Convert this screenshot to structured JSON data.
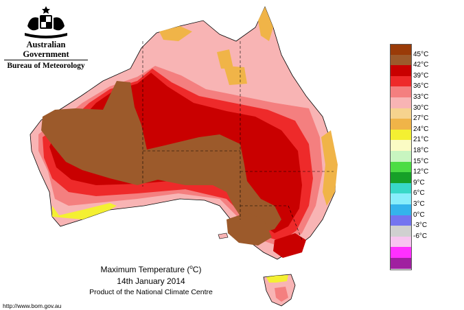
{
  "agency": {
    "line1": "Australian Government",
    "line2": "Bureau of Meteorology"
  },
  "map": {
    "title_prefix": "Maximum Temperature (",
    "title_unit_sup": "o",
    "title_suffix": "C)",
    "date": "14th January 2014",
    "product": "Product of the National Climate Centre",
    "website": "http://www.bom.gov.au"
  },
  "legend": {
    "entries": [
      {
        "label": "45°C",
        "color": "#9a3b08"
      },
      {
        "label": "42°C",
        "color": "#9c5a2b"
      },
      {
        "label": "39°C",
        "color": "#c90000"
      },
      {
        "label": "36°C",
        "color": "#ee2a2a"
      },
      {
        "label": "33°C",
        "color": "#f47f7f"
      },
      {
        "label": "30°C",
        "color": "#f8b4b4"
      },
      {
        "label": "27°C",
        "color": "#f6d38e"
      },
      {
        "label": "24°C",
        "color": "#f0b448"
      },
      {
        "label": "21°C",
        "color": "#f4f032"
      },
      {
        "label": "18°C",
        "color": "#fbfbc4"
      },
      {
        "label": "15°C",
        "color": "#c8f5c0"
      },
      {
        "label": "12°C",
        "color": "#4cdc44"
      },
      {
        "label": "9°C",
        "color": "#16a028"
      },
      {
        "label": "6°C",
        "color": "#38d8c8"
      },
      {
        "label": "3°C",
        "color": "#88eefb"
      },
      {
        "label": "0°C",
        "color": "#34b4ec"
      },
      {
        "label": "-3°C",
        "color": "#7474f0"
      },
      {
        "label": "-6°C",
        "color": "#d0d0d0"
      },
      {
        "label": "",
        "color": "#f8c4f0"
      },
      {
        "label": "",
        "color": "#ff30ff"
      },
      {
        "label": "",
        "color": "#a020a0"
      }
    ]
  },
  "colors": {
    "brown": "#9c5a2b",
    "dark_red": "#c90000",
    "red": "#ee2a2a",
    "salmon": "#f47f7f",
    "pink": "#f8b4b4",
    "light_pink": "#fad0d0",
    "orange": "#f0b448",
    "yellow": "#f4f032",
    "green": "#4cdc44",
    "border": "#000000"
  }
}
